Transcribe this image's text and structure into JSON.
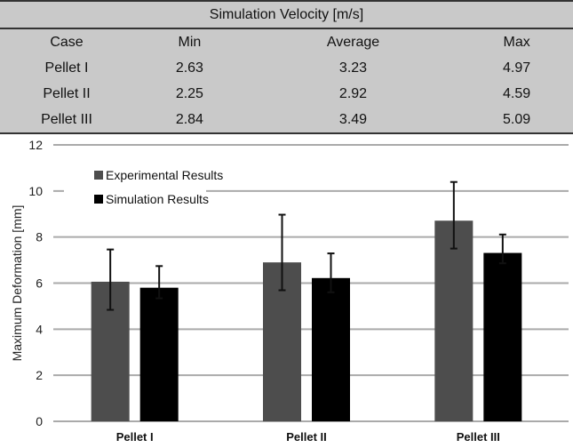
{
  "table": {
    "title": "Simulation Velocity [m/s]",
    "headers": [
      "Case",
      "Min",
      "Average",
      "Max"
    ],
    "rows": [
      [
        "Pellet I",
        "2.63",
        "3.23",
        "4.97"
      ],
      [
        "Pellet II",
        "2.25",
        "2.92",
        "4.59"
      ],
      [
        "Pellet III",
        "2.84",
        "3.49",
        "5.09"
      ]
    ]
  },
  "chart_data": {
    "type": "bar",
    "categories": [
      "Pellet I",
      "Pellet II",
      "Pellet III"
    ],
    "ylabel": "Maximum Deformation  [mm]",
    "xlabel": "",
    "ylim": [
      0,
      12
    ],
    "yticks": [
      "0",
      "2",
      "4",
      "6",
      "8",
      "10",
      "12"
    ],
    "grid": true,
    "legend_position": "top-left",
    "series": [
      {
        "name": "Experimental Results",
        "color": "#4d4d4d",
        "values": [
          6.06,
          6.9,
          8.71
        ],
        "err_low": [
          4.84,
          5.69,
          7.5
        ],
        "err_high": [
          7.46,
          8.97,
          10.39
        ]
      },
      {
        "name": "Simulation Results",
        "color": "#000000",
        "values": [
          5.8,
          6.22,
          7.31
        ],
        "err_low": [
          5.34,
          5.6,
          6.86
        ],
        "err_high": [
          6.74,
          7.29,
          8.11
        ]
      }
    ]
  }
}
